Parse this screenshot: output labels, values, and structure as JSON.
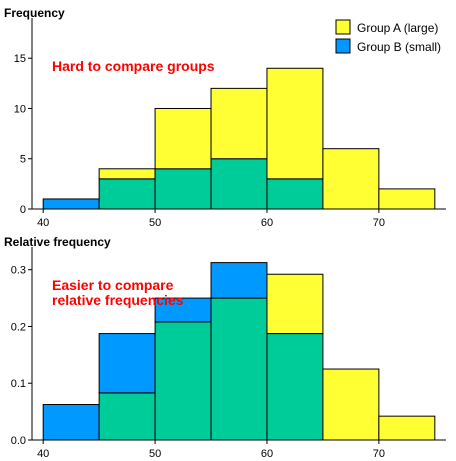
{
  "colors": {
    "group_a": "#ffff33",
    "group_b": "#0099ff",
    "overlap": "#00cc99",
    "annotation": "#ff0000"
  },
  "legend": {
    "group_a": "Group A (large)",
    "group_b": "Group B (small)"
  },
  "chart_data": [
    {
      "type": "histogram",
      "title": "Frequency",
      "annotation": "Hard to compare groups",
      "bin_edges": [
        40,
        45,
        50,
        55,
        60,
        65,
        70,
        75
      ],
      "series": [
        {
          "name": "Group A (large)",
          "values": [
            0,
            4,
            10,
            12,
            14,
            6,
            2
          ]
        },
        {
          "name": "Group B (small)",
          "values": [
            1,
            3,
            4,
            5,
            3,
            0,
            0
          ]
        }
      ],
      "xlim": [
        39,
        76
      ],
      "ylim": [
        0,
        19
      ],
      "xticks": [
        40,
        50,
        60,
        70
      ],
      "yticks": [
        0,
        5,
        10,
        15
      ],
      "ytick_labels": [
        "0",
        "5",
        "10",
        "15"
      ]
    },
    {
      "type": "histogram",
      "title": "Relative frequency",
      "annotation": [
        "Easier to compare",
        "relative frequencies"
      ],
      "bin_edges": [
        40,
        45,
        50,
        55,
        60,
        65,
        70,
        75
      ],
      "series": [
        {
          "name": "Group A (large)",
          "values": [
            0,
            0.083,
            0.208,
            0.25,
            0.292,
            0.125,
            0.042
          ]
        },
        {
          "name": "Group B (small)",
          "values": [
            0.0625,
            0.1875,
            0.25,
            0.3125,
            0.1875,
            0,
            0
          ]
        }
      ],
      "xlim": [
        39,
        76
      ],
      "ylim": [
        0,
        0.34
      ],
      "xticks": [
        40,
        50,
        60,
        70
      ],
      "yticks": [
        0,
        0.1,
        0.2,
        0.3
      ],
      "ytick_labels": [
        "0.0",
        "0.1",
        "0.2",
        "0.3"
      ]
    }
  ]
}
